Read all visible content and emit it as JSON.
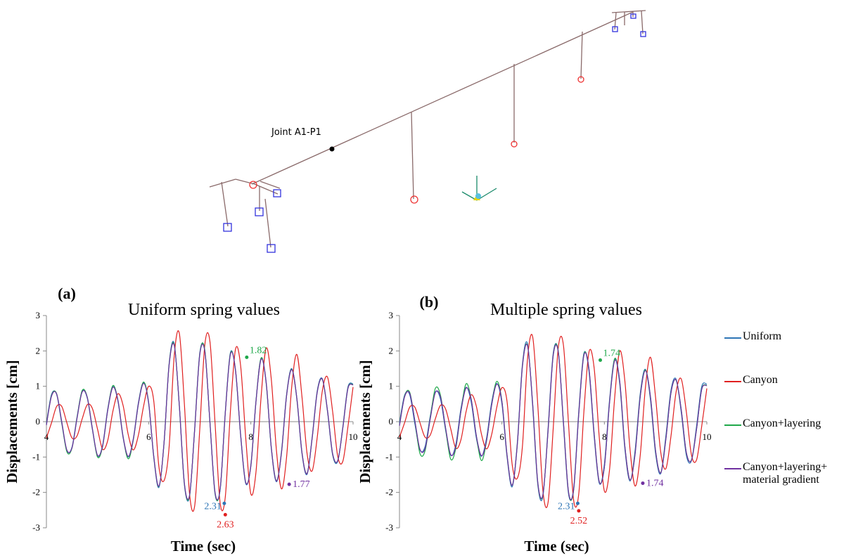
{
  "figure": {
    "joint_label": "Joint A1-P1"
  },
  "chart_data": [
    {
      "type": "line",
      "panel": "(a)",
      "title": "Uniform spring values",
      "x_label": "Time (sec)",
      "y_label": "Displacements [cm]",
      "xlim": [
        4,
        10
      ],
      "xticks": [
        4,
        6,
        8,
        10
      ],
      "ylim": [
        -3,
        3
      ],
      "yticks": [
        -3,
        -2,
        -1,
        0,
        1,
        2,
        3
      ],
      "x": [
        4.0,
        4.1,
        4.2,
        4.3,
        4.4,
        4.5,
        4.6,
        4.7,
        4.8,
        4.9,
        5.0,
        5.1,
        5.2,
        5.3,
        5.4,
        5.5,
        5.6,
        5.7,
        5.8,
        5.9,
        6.0,
        6.1,
        6.2,
        6.3,
        6.4,
        6.5,
        6.6,
        6.7,
        6.8,
        6.9,
        7.0,
        7.1,
        7.2,
        7.3,
        7.4,
        7.5,
        7.6,
        7.7,
        7.8,
        7.9,
        8.0,
        8.1,
        8.2,
        8.3,
        8.4,
        8.5,
        8.6,
        8.7,
        8.8,
        8.9,
        9.0,
        9.1,
        9.2,
        9.3,
        9.4,
        9.5,
        9.6,
        9.7,
        9.8,
        9.9,
        10.0
      ],
      "series": [
        {
          "color": "#2e75b6",
          "values": [
            -0.05,
            0.77,
            0.77,
            -0.05,
            -0.82,
            -0.72,
            0.14,
            0.86,
            0.66,
            -0.23,
            -0.97,
            -0.66,
            0.36,
            0.99,
            0.57,
            -0.45,
            -1.0,
            -0.48,
            0.54,
            1.1,
            0.51,
            -1.01,
            -1.86,
            -0.61,
            1.63,
            2.21,
            0.44,
            -1.79,
            -2.12,
            -0.21,
            1.93,
            2.0,
            -0.05,
            -2.05,
            -1.89,
            0.28,
            1.95,
            1.43,
            -0.4,
            -1.75,
            -1.22,
            0.59,
            1.78,
            1.08,
            -0.76,
            -1.7,
            -0.83,
            0.78,
            1.5,
            0.63,
            -0.9,
            -1.49,
            -0.43,
            0.88,
            1.21,
            0.28,
            -0.94,
            -1.12,
            -0.14,
            0.98,
            1.07
          ]
        },
        {
          "color": "#e02020",
          "values": [
            -0.46,
            -0.03,
            0.43,
            0.43,
            -0.03,
            -0.46,
            -0.4,
            0.08,
            0.48,
            0.37,
            -0.21,
            -0.78,
            -0.53,
            0.29,
            0.79,
            0.46,
            -0.36,
            -0.8,
            -0.38,
            0.43,
            1.0,
            0.59,
            -1.26,
            -1.67,
            -0.73,
            1.85,
            2.5,
            0.49,
            -2.03,
            -2.39,
            -0.23,
            2.18,
            2.26,
            -0.05,
            -2.31,
            -2.13,
            0.29,
            2.05,
            1.58,
            -0.46,
            -2.04,
            -1.43,
            0.69,
            2.08,
            1.2,
            -0.8,
            -1.9,
            -0.99,
            0.99,
            1.9,
            0.71,
            -0.9,
            -1.39,
            -0.43,
            0.88,
            1.26,
            0.29,
            -0.98,
            -1.12,
            -0.14,
            0.98
          ]
        },
        {
          "color": "#1fa84a",
          "values": [
            -0.08,
            0.74,
            0.79,
            -0.02,
            -0.85,
            -0.75,
            0.12,
            0.88,
            0.69,
            -0.2,
            -1.0,
            -0.7,
            0.33,
            1.02,
            0.6,
            -0.42,
            -1.05,
            -0.52,
            0.5,
            1.12,
            0.55,
            -0.98,
            -1.83,
            -0.64,
            1.6,
            2.18,
            0.47,
            -1.76,
            -2.1,
            -0.24,
            1.9,
            2.02,
            -0.02,
            -2.02,
            -1.92,
            0.25,
            1.92,
            1.46,
            -0.37,
            -1.72,
            -1.25,
            0.56,
            1.8,
            1.1,
            -0.73,
            -1.67,
            -0.86,
            0.75,
            1.48,
            0.66,
            -0.87,
            -1.46,
            -0.46,
            0.85,
            1.19,
            0.31,
            -0.91,
            -1.1,
            -0.17,
            0.95,
            1.05
          ]
        },
        {
          "color": "#7030a0",
          "values": [
            -0.1,
            0.72,
            0.78,
            0.0,
            -0.8,
            -0.74,
            0.1,
            0.84,
            0.68,
            -0.2,
            -0.95,
            -0.68,
            0.32,
            0.97,
            0.6,
            -0.42,
            -0.98,
            -0.5,
            0.5,
            1.08,
            0.54,
            -0.97,
            -1.82,
            -0.63,
            1.58,
            2.16,
            0.48,
            -1.74,
            -2.08,
            -0.25,
            1.88,
            1.98,
            -0.02,
            -2.0,
            -1.9,
            0.24,
            1.9,
            1.46,
            -0.36,
            -1.72,
            -1.26,
            0.55,
            1.76,
            1.12,
            -0.72,
            -1.68,
            -0.88,
            0.74,
            1.47,
            0.67,
            -0.86,
            -1.47,
            -0.47,
            0.84,
            1.2,
            0.32,
            -0.9,
            -1.1,
            -0.18,
            0.94,
            1.04
          ]
        }
      ],
      "annotations": [
        {
          "label": "1.82",
          "x": 7.92,
          "y": 1.82,
          "color": "#1fa84a"
        },
        {
          "label": "2.31",
          "x": 7.48,
          "y": -2.31,
          "color": "#2e75b6"
        },
        {
          "label": "2.63",
          "x": 7.5,
          "y": -2.63,
          "color": "#e02020"
        },
        {
          "label": "1.77",
          "x": 8.75,
          "y": -1.77,
          "color": "#7030a0"
        }
      ]
    },
    {
      "type": "line",
      "panel": "(b)",
      "title": "Multiple spring values",
      "x_label": "Time (sec)",
      "y_label": "Displacements [cm]",
      "xlim": [
        4,
        10
      ],
      "xticks": [
        4,
        6,
        8,
        10
      ],
      "ylim": [
        -3,
        3
      ],
      "yticks": [
        -3,
        -2,
        -1,
        0,
        1,
        2,
        3
      ],
      "x": [
        4.0,
        4.1,
        4.2,
        4.3,
        4.4,
        4.5,
        4.6,
        4.7,
        4.8,
        4.9,
        5.0,
        5.1,
        5.2,
        5.3,
        5.4,
        5.5,
        5.6,
        5.7,
        5.8,
        5.9,
        6.0,
        6.1,
        6.2,
        6.3,
        6.4,
        6.5,
        6.6,
        6.7,
        6.8,
        6.9,
        7.0,
        7.1,
        7.2,
        7.3,
        7.4,
        7.5,
        7.6,
        7.7,
        7.8,
        7.9,
        8.0,
        8.1,
        8.2,
        8.3,
        8.4,
        8.5,
        8.6,
        8.7,
        8.8,
        8.9,
        9.0,
        9.1,
        9.2,
        9.3,
        9.4,
        9.5,
        9.6,
        9.7,
        9.8,
        9.9,
        10.0
      ],
      "legend": true,
      "series": [
        {
          "name": "Uniform",
          "color": "#2e75b6",
          "values": [
            -0.04,
            0.75,
            0.76,
            -0.06,
            -0.8,
            -0.7,
            0.15,
            0.84,
            0.64,
            -0.24,
            -0.95,
            -0.64,
            0.37,
            0.97,
            0.55,
            -0.46,
            -0.98,
            -0.46,
            0.55,
            1.08,
            0.5,
            -1.0,
            -1.84,
            -0.6,
            1.62,
            2.2,
            0.43,
            -1.78,
            -2.11,
            -0.2,
            1.92,
            1.98,
            -0.06,
            -2.04,
            -1.88,
            0.29,
            1.93,
            1.41,
            -0.41,
            -1.74,
            -1.2,
            0.6,
            1.76,
            1.06,
            -0.77,
            -1.68,
            -0.81,
            0.79,
            1.48,
            0.61,
            -0.91,
            -1.47,
            -0.41,
            0.89,
            1.2,
            0.27,
            -0.95,
            -1.1,
            -0.12,
            0.99,
            1.06
          ]
        },
        {
          "name": "Canyon",
          "color": "#e02020",
          "values": [
            -0.44,
            -0.03,
            0.41,
            0.41,
            -0.03,
            -0.44,
            -0.38,
            0.08,
            0.46,
            0.36,
            -0.2,
            -0.75,
            -0.51,
            0.28,
            0.76,
            0.44,
            -0.35,
            -0.77,
            -0.36,
            0.41,
            0.96,
            0.57,
            -1.21,
            -1.6,
            -0.7,
            1.78,
            2.4,
            0.47,
            -1.95,
            -2.29,
            -0.22,
            2.09,
            2.17,
            -0.05,
            -2.22,
            -2.04,
            0.28,
            1.97,
            1.52,
            -0.44,
            -1.96,
            -1.37,
            0.66,
            2.0,
            1.15,
            -0.77,
            -1.82,
            -0.95,
            0.95,
            1.82,
            0.68,
            -0.86,
            -1.33,
            -0.41,
            0.84,
            1.21,
            0.28,
            -0.94,
            -1.08,
            -0.13,
            0.94
          ]
        },
        {
          "name": "Canyon+layering",
          "color": "#1fa84a",
          "values": [
            -0.1,
            0.72,
            0.83,
            0.02,
            -0.9,
            -0.82,
            0.1,
            0.94,
            0.75,
            -0.2,
            -1.06,
            -0.75,
            0.3,
            1.07,
            0.64,
            -0.4,
            -1.1,
            -0.55,
            0.48,
            1.14,
            0.58,
            -0.95,
            -1.8,
            -0.66,
            1.57,
            2.15,
            0.5,
            -1.73,
            -2.07,
            -0.27,
            1.86,
            2.0,
            0.0,
            -1.99,
            -1.94,
            0.22,
            1.9,
            1.48,
            -0.34,
            -1.7,
            -1.28,
            0.53,
            1.78,
            1.12,
            -0.7,
            -1.65,
            -0.89,
            0.72,
            1.46,
            0.69,
            -0.84,
            -1.44,
            -0.49,
            0.82,
            1.17,
            0.34,
            -0.88,
            -1.08,
            -0.2,
            0.92,
            1.03
          ]
        },
        {
          "name": "Canyon+layering+ material gradient",
          "color": "#7030a0",
          "values": [
            -0.12,
            0.7,
            0.8,
            0.03,
            -0.78,
            -0.76,
            0.07,
            0.82,
            0.7,
            -0.17,
            -0.93,
            -0.7,
            0.29,
            0.95,
            0.63,
            -0.39,
            -0.96,
            -0.53,
            0.47,
            1.06,
            0.57,
            -0.94,
            -1.8,
            -0.66,
            1.55,
            2.14,
            0.51,
            -1.71,
            -2.06,
            -0.28,
            1.85,
            1.97,
            0.01,
            -1.98,
            -1.92,
            0.21,
            1.87,
            1.49,
            -0.33,
            -1.7,
            -1.29,
            0.52,
            1.72,
            1.15,
            -0.69,
            -1.65,
            -0.92,
            0.7,
            1.44,
            0.71,
            -0.82,
            -1.45,
            -0.51,
            0.81,
            1.18,
            0.35,
            -0.87,
            -1.09,
            -0.21,
            0.91,
            1.02
          ]
        }
      ],
      "annotations": [
        {
          "label": "1.74",
          "x": 7.92,
          "y": 1.74,
          "color": "#1fa84a"
        },
        {
          "label": "2.31",
          "x": 7.48,
          "y": -2.31,
          "color": "#2e75b6"
        },
        {
          "label": "2.52",
          "x": 7.5,
          "y": -2.52,
          "color": "#e02020"
        },
        {
          "label": "1.74",
          "x": 8.75,
          "y": -1.74,
          "color": "#7030a0"
        }
      ]
    }
  ]
}
